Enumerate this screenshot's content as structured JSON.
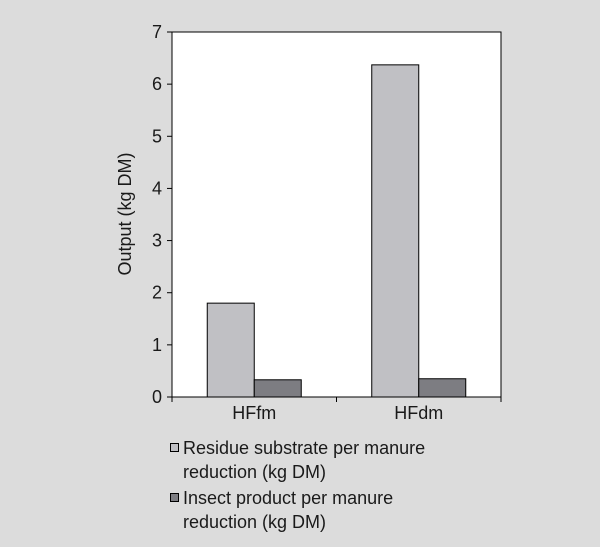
{
  "chart_data": {
    "type": "bar",
    "title": "",
    "xlabel": "",
    "ylabel": "Output (kg DM)",
    "ylim": [
      0,
      7
    ],
    "yticks": [
      0,
      1,
      2,
      3,
      4,
      5,
      6,
      7
    ],
    "grid": false,
    "legend_position": "bottom",
    "categories": [
      "HFfm",
      "HFdm"
    ],
    "series": [
      {
        "name": "Residue substrate per manure reduction (kg DM)",
        "values": [
          1.8,
          6.37
        ],
        "color": "#c0c0c4"
      },
      {
        "name": "Insect product per manure reduction (kg DM)",
        "values": [
          0.33,
          0.35
        ],
        "color": "#7d7d82"
      }
    ],
    "legend": [
      {
        "line1": "Residue substrate per manure",
        "line2": "reduction (kg DM)"
      },
      {
        "line1": "Insect product per manure",
        "line2": "reduction (kg DM)"
      }
    ]
  }
}
